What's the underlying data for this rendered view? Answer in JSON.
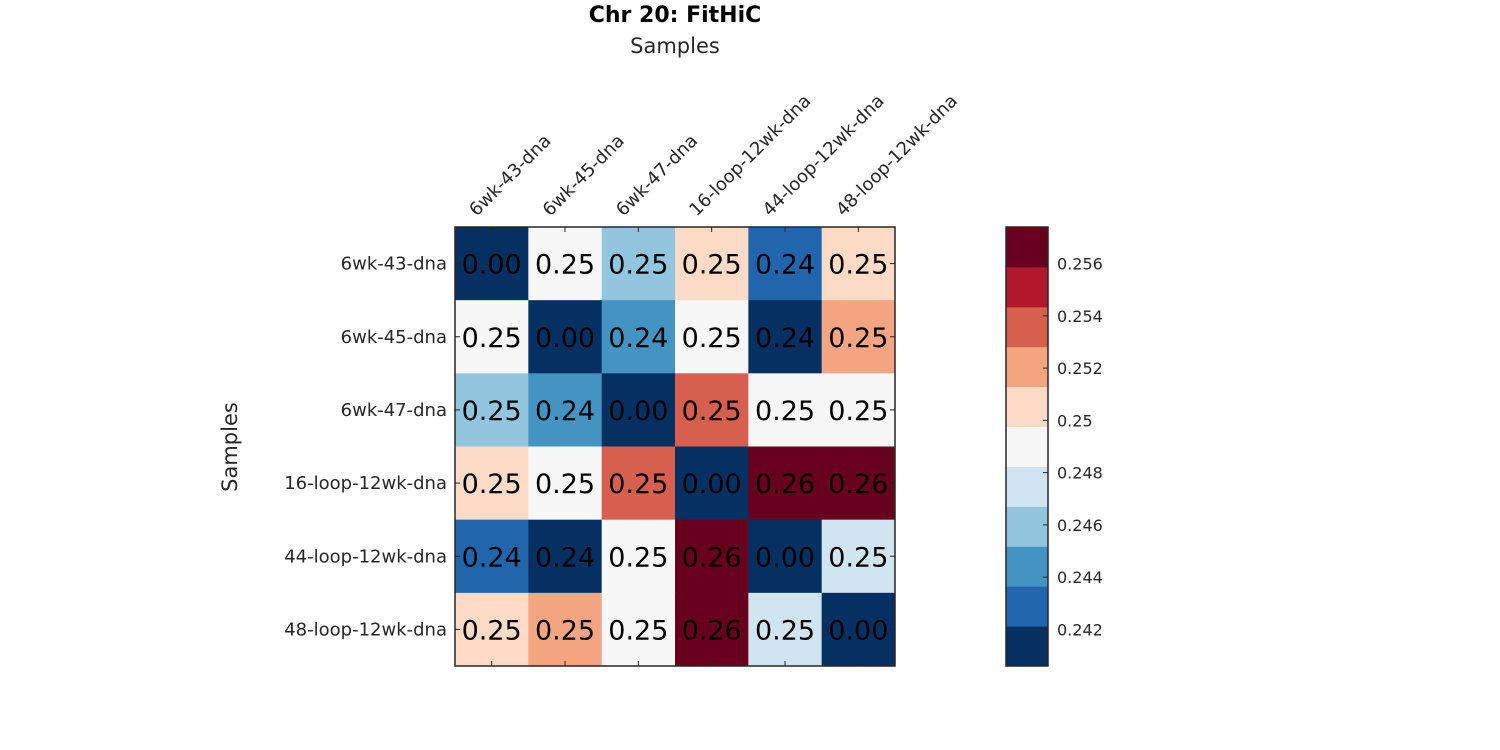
{
  "chart_data": {
    "type": "heatmap",
    "title": "Chr 20: FitHiC",
    "xlabel": "Samples",
    "ylabel": "Samples",
    "row_labels": [
      "6wk-43-dna",
      "6wk-45-dna",
      "6wk-47-dna",
      "16-loop-12wk-dna",
      "44-loop-12wk-dna",
      "48-loop-12wk-dna"
    ],
    "col_labels": [
      "6wk-43-dna",
      "6wk-45-dna",
      "6wk-47-dna",
      "16-loop-12wk-dna",
      "44-loop-12wk-dna",
      "48-loop-12wk-dna"
    ],
    "values": [
      [
        0.0,
        0.2485,
        0.2459,
        0.2505,
        0.2432,
        0.2505
      ],
      [
        0.2485,
        0.0,
        0.2443,
        0.2485,
        0.2412,
        0.2521
      ],
      [
        0.2459,
        0.2443,
        0.0,
        0.254,
        0.2485,
        0.2485
      ],
      [
        0.2505,
        0.2485,
        0.254,
        0.0,
        0.257,
        0.257
      ],
      [
        0.2432,
        0.2412,
        0.2485,
        0.257,
        0.0,
        0.2475
      ],
      [
        0.2505,
        0.2521,
        0.2485,
        0.257,
        0.2475,
        0.0
      ]
    ],
    "cell_labels": [
      [
        "0.00",
        "0.25",
        "0.25",
        "0.25",
        "0.24",
        "0.25"
      ],
      [
        "0.25",
        "0.00",
        "0.24",
        "0.25",
        "0.24",
        "0.25"
      ],
      [
        "0.25",
        "0.24",
        "0.00",
        "0.25",
        "0.25",
        "0.25"
      ],
      [
        "0.25",
        "0.25",
        "0.25",
        "0.00",
        "0.26",
        "0.26"
      ],
      [
        "0.24",
        "0.24",
        "0.25",
        "0.26",
        "0.00",
        "0.25"
      ],
      [
        "0.25",
        "0.25",
        "0.25",
        "0.26",
        "0.25",
        "0.00"
      ]
    ],
    "colorbar": {
      "range": [
        0.2406,
        0.2574
      ],
      "ticks": [
        0.242,
        0.244,
        0.246,
        0.248,
        0.25,
        0.252,
        0.254,
        0.256
      ],
      "tick_labels": [
        "0.242",
        "0.244",
        "0.246",
        "0.248",
        "0.25",
        "0.252",
        "0.254",
        "0.256"
      ],
      "colors": [
        "#053061",
        "#2166ac",
        "#4393c3",
        "#92c5de",
        "#d1e5f0",
        "#f7f7f7",
        "#fddbc7",
        "#f4a582",
        "#d6604d",
        "#b2182b",
        "#67001f"
      ]
    }
  }
}
